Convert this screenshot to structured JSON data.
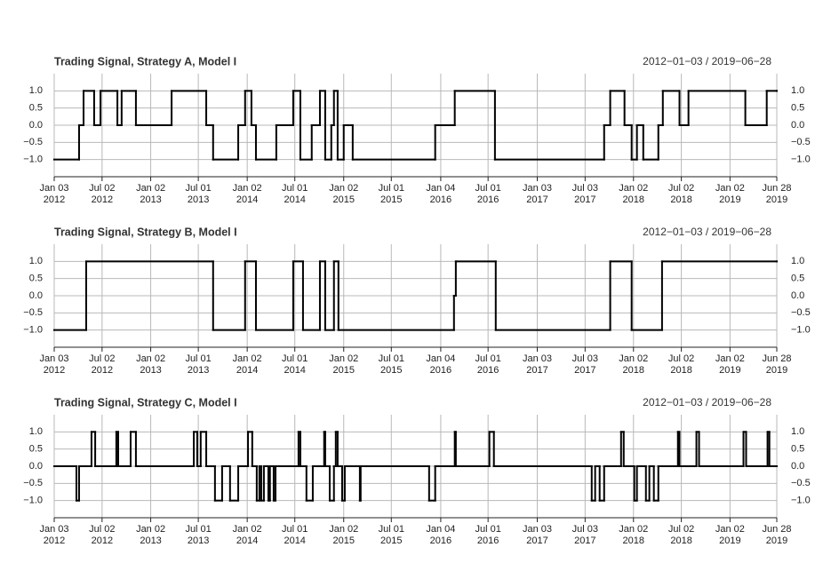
{
  "chart_data": [
    {
      "type": "line",
      "step": true,
      "title": "Trading Signal, Strategy A, Model I",
      "subtitle": "2012−01−03 / 2019−06−28",
      "color": "#000000",
      "grid": true,
      "xlim": [
        "2012-01-03",
        "2019-06-28"
      ],
      "ylim": [
        -1.5,
        1.5
      ],
      "yticks": [
        {
          "value": 1,
          "label": "1.0"
        },
        {
          "value": 0.5,
          "label": "0.5"
        },
        {
          "value": 0,
          "label": "0.0"
        },
        {
          "value": -0.5,
          "label": "−0.5"
        },
        {
          "value": -1,
          "label": "−1.0"
        }
      ],
      "xticks": [
        {
          "value": "2012-01-03",
          "label": [
            "Jan 03",
            "2012"
          ]
        },
        {
          "value": "2012-07-02",
          "label": [
            "Jul 02",
            "2012"
          ]
        },
        {
          "value": "2013-01-02",
          "label": [
            "Jan 02",
            "2013"
          ]
        },
        {
          "value": "2013-07-01",
          "label": [
            "Jul 01",
            "2013"
          ]
        },
        {
          "value": "2014-01-02",
          "label": [
            "Jan 02",
            "2014"
          ]
        },
        {
          "value": "2014-07-01",
          "label": [
            "Jul 01",
            "2014"
          ]
        },
        {
          "value": "2015-01-02",
          "label": [
            "Jan 02",
            "2015"
          ]
        },
        {
          "value": "2015-07-01",
          "label": [
            "Jul 01",
            "2015"
          ]
        },
        {
          "value": "2016-01-04",
          "label": [
            "Jan 04",
            "2016"
          ]
        },
        {
          "value": "2016-07-01",
          "label": [
            "Jul 01",
            "2016"
          ]
        },
        {
          "value": "2017-01-03",
          "label": [
            "Jan 03",
            "2017"
          ]
        },
        {
          "value": "2017-07-03",
          "label": [
            "Jul 03",
            "2017"
          ]
        },
        {
          "value": "2018-01-02",
          "label": [
            "Jan 02",
            "2018"
          ]
        },
        {
          "value": "2018-07-02",
          "label": [
            "Jul 02",
            "2018"
          ]
        },
        {
          "value": "2019-01-02",
          "label": [
            "Jan 02",
            "2019"
          ]
        },
        {
          "value": "2019-06-28",
          "label": [
            "Jun 28",
            "2019"
          ]
        }
      ],
      "x": [
        "2012-01-03",
        "2012-04-06",
        "2012-04-23",
        "2012-06-02",
        "2012-06-26",
        "2012-08-29",
        "2012-09-14",
        "2012-11-07",
        "2013-03-22",
        "2013-07-31",
        "2013-08-26",
        "2013-11-29",
        "2013-12-25",
        "2014-01-18",
        "2014-02-04",
        "2014-04-22",
        "2014-06-25",
        "2014-07-22",
        "2014-09-03",
        "2014-10-04",
        "2014-10-24",
        "2014-11-16",
        "2014-11-26",
        "2014-12-10",
        "2015-01-02",
        "2015-02-05",
        "2015-12-14",
        "2016-02-26",
        "2016-07-27",
        "2017-09-13",
        "2017-10-06",
        "2017-11-29",
        "2017-12-26",
        "2018-01-15",
        "2018-02-08",
        "2018-04-06",
        "2018-04-23",
        "2018-06-25",
        "2018-07-29",
        "2019-03-01",
        "2019-05-21",
        "2019-06-28"
      ],
      "values": [
        -1,
        0,
        1,
        0,
        1,
        0,
        1,
        0,
        1,
        0,
        -1,
        0,
        1,
        0,
        -1,
        0,
        1,
        -1,
        0,
        1,
        -1,
        0,
        1,
        -1,
        0,
        -1,
        0,
        1,
        -1,
        0,
        1,
        0,
        -1,
        0,
        -1,
        0,
        1,
        0,
        1,
        0,
        1,
        1
      ]
    },
    {
      "type": "line",
      "step": true,
      "title": "Trading Signal, Strategy B, Model I",
      "subtitle": "2012−01−03 / 2019−06−28",
      "color": "#000000",
      "grid": true,
      "xlim": [
        "2012-01-03",
        "2019-06-28"
      ],
      "ylim": [
        -1.5,
        1.5
      ],
      "yticks": [
        {
          "value": 1,
          "label": "1.0"
        },
        {
          "value": 0.5,
          "label": "0.5"
        },
        {
          "value": 0,
          "label": "0.0"
        },
        {
          "value": -0.5,
          "label": "−0.5"
        },
        {
          "value": -1,
          "label": "−1.0"
        }
      ],
      "xticks": [
        {
          "value": "2012-01-03",
          "label": [
            "Jan 03",
            "2012"
          ]
        },
        {
          "value": "2012-07-02",
          "label": [
            "Jul 02",
            "2012"
          ]
        },
        {
          "value": "2013-01-02",
          "label": [
            "Jan 02",
            "2013"
          ]
        },
        {
          "value": "2013-07-01",
          "label": [
            "Jul 01",
            "2013"
          ]
        },
        {
          "value": "2014-01-02",
          "label": [
            "Jan 02",
            "2014"
          ]
        },
        {
          "value": "2014-07-01",
          "label": [
            "Jul 01",
            "2014"
          ]
        },
        {
          "value": "2015-01-02",
          "label": [
            "Jan 02",
            "2015"
          ]
        },
        {
          "value": "2015-07-01",
          "label": [
            "Jul 01",
            "2015"
          ]
        },
        {
          "value": "2016-01-04",
          "label": [
            "Jan 04",
            "2016"
          ]
        },
        {
          "value": "2016-07-01",
          "label": [
            "Jul 01",
            "2016"
          ]
        },
        {
          "value": "2017-01-03",
          "label": [
            "Jan 03",
            "2017"
          ]
        },
        {
          "value": "2017-07-03",
          "label": [
            "Jul 03",
            "2017"
          ]
        },
        {
          "value": "2018-01-02",
          "label": [
            "Jan 02",
            "2018"
          ]
        },
        {
          "value": "2018-07-02",
          "label": [
            "Jul 02",
            "2018"
          ]
        },
        {
          "value": "2019-01-02",
          "label": [
            "Jan 02",
            "2019"
          ]
        },
        {
          "value": "2019-06-28",
          "label": [
            "Jun 28",
            "2019"
          ]
        }
      ],
      "x": [
        "2012-01-03",
        "2012-05-03",
        "2013-08-26",
        "2013-12-25",
        "2014-02-04",
        "2014-06-25",
        "2014-08-01",
        "2014-10-04",
        "2014-10-24",
        "2014-11-26",
        "2014-12-13",
        "2016-02-23",
        "2016-03-01",
        "2016-07-30",
        "2017-10-06",
        "2017-12-26",
        "2018-04-20",
        "2019-06-28"
      ],
      "values": [
        -1,
        1,
        -1,
        1,
        -1,
        1,
        -1,
        1,
        -1,
        1,
        -1,
        0,
        1,
        -1,
        1,
        -1,
        1,
        1
      ]
    },
    {
      "type": "line",
      "step": true,
      "title": "Trading Signal, Strategy C, Model I",
      "subtitle": "2012−01−03 / 2019−06−28",
      "color": "#000000",
      "grid": true,
      "xlim": [
        "2012-01-03",
        "2019-06-28"
      ],
      "ylim": [
        -1.5,
        1.5
      ],
      "yticks": [
        {
          "value": 1,
          "label": "1.0"
        },
        {
          "value": 0.5,
          "label": "0.5"
        },
        {
          "value": 0,
          "label": "0.0"
        },
        {
          "value": -0.5,
          "label": "−0.5"
        },
        {
          "value": -1,
          "label": "−1.0"
        }
      ],
      "xticks": [
        {
          "value": "2012-01-03",
          "label": [
            "Jan 03",
            "2012"
          ]
        },
        {
          "value": "2012-07-02",
          "label": [
            "Jul 02",
            "2012"
          ]
        },
        {
          "value": "2013-01-02",
          "label": [
            "Jan 02",
            "2013"
          ]
        },
        {
          "value": "2013-07-01",
          "label": [
            "Jul 01",
            "2013"
          ]
        },
        {
          "value": "2014-01-02",
          "label": [
            "Jan 02",
            "2014"
          ]
        },
        {
          "value": "2014-07-01",
          "label": [
            "Jul 01",
            "2014"
          ]
        },
        {
          "value": "2015-01-02",
          "label": [
            "Jan 02",
            "2015"
          ]
        },
        {
          "value": "2015-07-01",
          "label": [
            "Jul 01",
            "2015"
          ]
        },
        {
          "value": "2016-01-04",
          "label": [
            "Jan 04",
            "2016"
          ]
        },
        {
          "value": "2016-07-01",
          "label": [
            "Jul 01",
            "2016"
          ]
        },
        {
          "value": "2017-01-03",
          "label": [
            "Jan 03",
            "2017"
          ]
        },
        {
          "value": "2017-07-03",
          "label": [
            "Jul 03",
            "2017"
          ]
        },
        {
          "value": "2018-01-02",
          "label": [
            "Jan 02",
            "2018"
          ]
        },
        {
          "value": "2018-07-02",
          "label": [
            "Jul 02",
            "2018"
          ]
        },
        {
          "value": "2019-01-02",
          "label": [
            "Jan 02",
            "2019"
          ]
        },
        {
          "value": "2019-06-28",
          "label": [
            "Jun 28",
            "2019"
          ]
        }
      ],
      "x": [
        "2012-01-03",
        "2012-03-27",
        "2012-04-06",
        "2012-05-23",
        "2012-06-06",
        "2012-08-25",
        "2012-09-01",
        "2012-10-18",
        "2012-11-07",
        "2013-06-14",
        "2013-06-27",
        "2013-07-10",
        "2013-07-31",
        "2013-09-02",
        "2013-09-29",
        "2013-10-29",
        "2013-11-29",
        "2014-01-05",
        "2014-01-21",
        "2014-02-07",
        "2014-02-17",
        "2014-02-24",
        "2014-03-06",
        "2014-03-23",
        "2014-03-29",
        "2014-04-12",
        "2014-04-19",
        "2014-07-15",
        "2014-07-22",
        "2014-08-14",
        "2014-09-07",
        "2014-10-20",
        "2014-10-24",
        "2014-11-10",
        "2014-11-26",
        "2014-12-03",
        "2014-12-10",
        "2014-12-27",
        "2015-01-06",
        "2015-03-04",
        "2015-03-07",
        "2015-11-21",
        "2015-12-14",
        "2016-02-26",
        "2016-03-01",
        "2016-07-06",
        "2016-07-23",
        "2017-07-28",
        "2017-08-10",
        "2017-08-27",
        "2017-09-13",
        "2017-11-16",
        "2017-11-26",
        "2018-01-05",
        "2018-01-15",
        "2018-02-18",
        "2018-03-03",
        "2018-03-20",
        "2018-04-06",
        "2018-06-19",
        "2018-06-25",
        "2018-08-28",
        "2018-09-07",
        "2019-02-22",
        "2019-03-04",
        "2019-05-24",
        "2019-05-31",
        "2019-06-28"
      ],
      "values": [
        0,
        -1,
        0,
        1,
        0,
        1,
        0,
        1,
        0,
        1,
        0,
        1,
        0,
        -1,
        0,
        -1,
        0,
        1,
        0,
        -1,
        0,
        -1,
        0,
        -1,
        0,
        -1,
        0,
        1,
        0,
        -1,
        0,
        1,
        0,
        -1,
        0,
        1,
        0,
        -1,
        0,
        -1,
        0,
        -1,
        0,
        1,
        0,
        1,
        0,
        -1,
        0,
        -1,
        0,
        1,
        0,
        -1,
        0,
        -1,
        0,
        -1,
        0,
        1,
        0,
        1,
        0,
        1,
        0,
        1,
        0,
        0
      ]
    }
  ]
}
